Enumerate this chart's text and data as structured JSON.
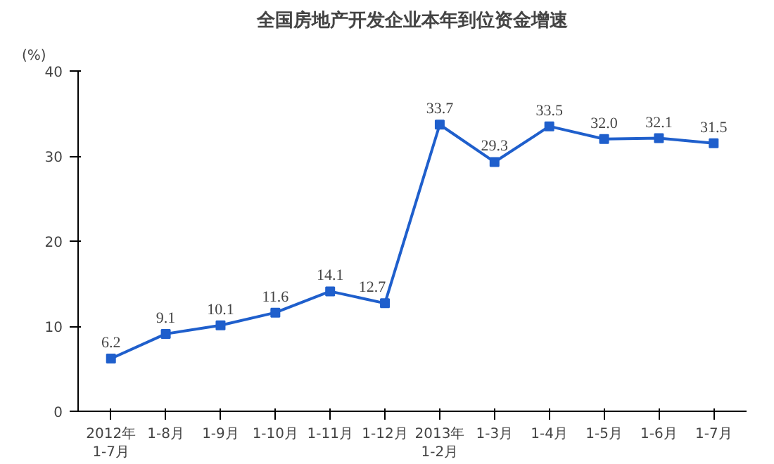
{
  "chart_data": {
    "type": "line",
    "title": "全国房地产开发企业本年到位资金增速",
    "ylabel": "(%)",
    "categories": [
      "2012年\n1-7月",
      "1-8月",
      "1-9月",
      "1-10月",
      "1-11月",
      "1-12月",
      "2013年\n1-2月",
      "1-3月",
      "1-4月",
      "1-5月",
      "1-6月",
      "1-7月"
    ],
    "series": [
      {
        "color": "#1f5fcc",
        "values": [
          6.2,
          9.1,
          10.1,
          11.6,
          14.1,
          12.7,
          33.7,
          29.3,
          33.5,
          32.0,
          32.1,
          31.5
        ]
      }
    ],
    "value_labels": [
      "6.2",
      "9.1",
      "10.1",
      "11.6",
      "14.1",
      "12.7",
      "33.7",
      "29.3",
      "33.5",
      "32.0",
      "32.1",
      "31.5"
    ],
    "ylim": [
      0,
      40
    ],
    "yticks": [
      0,
      10,
      20,
      30,
      40
    ],
    "grid": false,
    "marker": "square",
    "line_style": "solid"
  }
}
